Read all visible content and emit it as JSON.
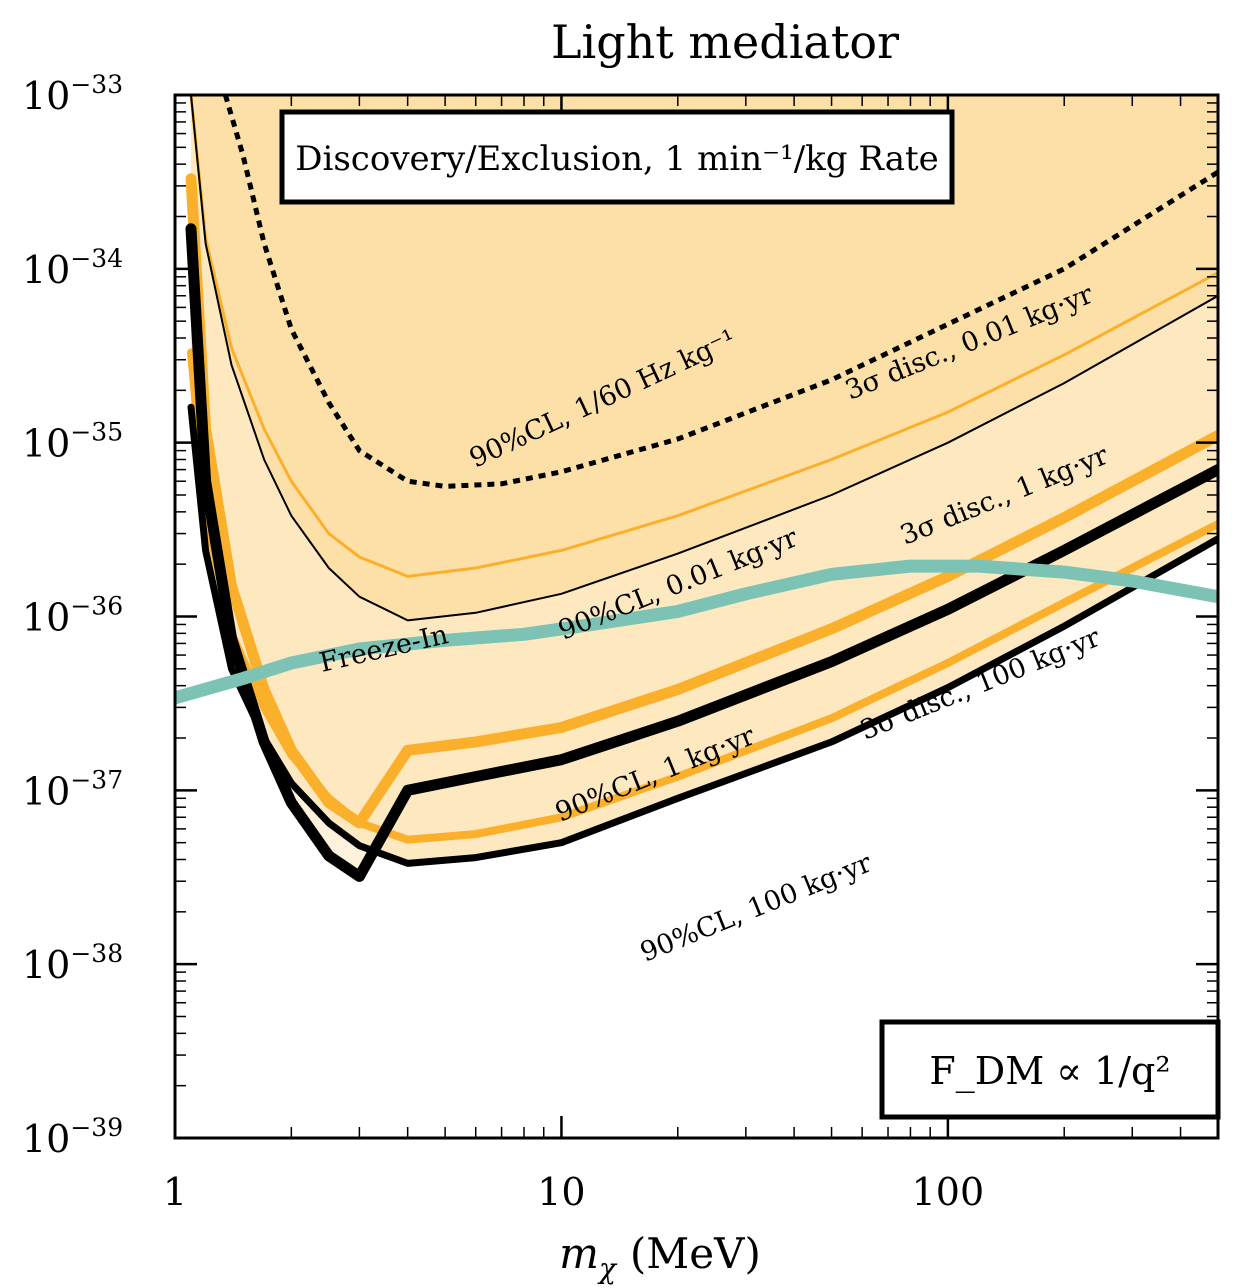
{
  "chart_data": {
    "type": "line",
    "title": "Light mediator",
    "xlabel": "m_χ (MeV)",
    "xlabel_main": "m",
    "xlabel_sub": "χ",
    "xlabel_unit": "(MeV)",
    "ylabel": "",
    "xscale": "log",
    "yscale": "log",
    "xlim": [
      1,
      500
    ],
    "ylim": [
      1e-39,
      1e-33
    ],
    "x_ticks": [
      {
        "value": 1,
        "label": "1"
      },
      {
        "value": 10,
        "label": "10"
      },
      {
        "value": 100,
        "label": "100"
      }
    ],
    "y_ticks": [
      {
        "value": 1e-33,
        "base": "10",
        "exp": "−33"
      },
      {
        "value": 1e-34,
        "base": "10",
        "exp": "−34"
      },
      {
        "value": 1e-35,
        "base": "10",
        "exp": "−35"
      },
      {
        "value": 1e-36,
        "base": "10",
        "exp": "−36"
      },
      {
        "value": 1e-37,
        "base": "10",
        "exp": "−37"
      },
      {
        "value": 1e-38,
        "base": "10",
        "exp": "−38"
      },
      {
        "value": 1e-39,
        "base": "10",
        "exp": "−39"
      }
    ],
    "legend_box": "Discovery/Exclusion, 1 min⁻¹/kg Rate",
    "form_factor_box": "F_DM ∝ 1/q²",
    "colors": {
      "band_light": "#fef2dc",
      "band_mid": "#fde8c0",
      "band_dark": "#fde0a8",
      "orange": "#fbb02c",
      "black": "#000000",
      "teal": "#7dc3b5"
    },
    "series": [
      {
        "name": "90%CL, 1/60 Hz kg⁻¹",
        "label": "90%CL, 1/60 Hz kg⁻¹",
        "style": "black-dotted",
        "x": [
          1.35,
          1.5,
          1.7,
          2.0,
          2.5,
          3.0,
          4.0,
          5.0,
          7.0,
          10,
          20,
          50,
          100,
          200,
          500
        ],
        "y": [
          1e-33,
          4.5e-34,
          1.4e-34,
          4.5e-35,
          1.7e-35,
          9e-36,
          6e-36,
          5.6e-36,
          5.8e-36,
          6.8e-36,
          1.05e-35,
          2.3e-35,
          4.8e-35,
          1e-34,
          3.6e-34
        ]
      },
      {
        "name": "3σ disc., 0.01 kg·yr",
        "label": "3σ disc., 0.01 kg·yr",
        "style": "orange-thin",
        "x": [
          1.1,
          1.2,
          1.4,
          1.7,
          2.0,
          2.5,
          3.0,
          4.0,
          6.0,
          10,
          20,
          50,
          100,
          200,
          500
        ],
        "y": [
          1e-33,
          1.5e-34,
          3.5e-35,
          1.2e-35,
          6e-36,
          3e-36,
          2.2e-36,
          1.7e-36,
          1.9e-36,
          2.4e-36,
          3.8e-36,
          8e-36,
          1.5e-35,
          3.2e-35,
          9.5e-35
        ]
      },
      {
        "name": "90%CL, 0.01 kg·yr",
        "label": "90%CL, 0.01 kg·yr",
        "style": "black-thin",
        "x": [
          1.1,
          1.2,
          1.4,
          1.7,
          2.0,
          2.5,
          3.0,
          4.0,
          6.0,
          10,
          20,
          50,
          100,
          200,
          500
        ],
        "y": [
          1e-33,
          1.4e-34,
          2.8e-35,
          8e-36,
          3.8e-36,
          1.9e-36,
          1.3e-36,
          9.5e-37,
          1.05e-36,
          1.35e-36,
          2.3e-36,
          5e-36,
          1e-35,
          2.2e-35,
          7e-35
        ]
      },
      {
        "name": "3σ disc., 1 kg·yr",
        "label": "3σ disc., 1 kg·yr",
        "style": "orange-thick",
        "x": [
          1.1,
          1.2,
          1.4,
          1.7,
          2.0,
          2.5,
          3.0,
          4.0,
          6.0,
          10,
          20,
          50,
          100,
          200,
          500
        ],
        "y": [
          3.3e-35,
          4e-36,
          8e-37,
          3e-37,
          1.6e-37,
          9e-38,
          6.5e-38,
          5.2e-38,
          5.6e-38,
          7e-38,
          1.2e-37,
          2.6e-37,
          5.4e-37,
          1.2e-36,
          3.4e-36
        ]
      },
      {
        "name": "90%CL, 1 kg·yr",
        "label": "90%CL, 1 kg·yr",
        "style": "black-thick",
        "x": [
          1.1,
          1.2,
          1.4,
          1.7,
          2.0,
          2.5,
          3.0,
          4.0,
          6.0,
          10,
          20,
          50,
          100,
          200,
          500
        ],
        "y": [
          1.6e-35,
          2.4e-36,
          5e-37,
          2e-37,
          1.1e-37,
          6.5e-38,
          4.8e-38,
          3.8e-38,
          4.1e-38,
          5e-38,
          9e-38,
          1.9e-37,
          3.9e-37,
          8.8e-37,
          2.8e-36
        ]
      },
      {
        "name": "3σ disc., 100 kg·yr",
        "label": "3σ disc., 100 kg·yr",
        "style": "orange-thicker",
        "x": [
          1.1,
          1.2,
          1.4,
          1.7,
          2.0,
          2.5,
          3.0,
          4.0,
          6.0,
          10,
          20,
          50,
          100,
          200,
          500
        ],
        "y": [
          3.3e-34,
          1.2e-35,
          1.5e-36,
          3.8e-37,
          1.7e-37,
          8.5e-38,
          6.5e-38,
          1.7e-37,
          1.9e-37,
          2.3e-37,
          3.8e-37,
          8.5e-37,
          1.7e-36,
          3.7e-36,
          1.1e-35
        ]
      },
      {
        "name": "90%CL, 100 kg·yr",
        "label": "90%CL, 100 kg·yr",
        "style": "black-thicker",
        "x": [
          1.1,
          1.2,
          1.4,
          1.7,
          2.0,
          2.5,
          3.0,
          4.0,
          6.0,
          10,
          20,
          50,
          100,
          200,
          500
        ],
        "y": [
          1.7e-34,
          6e-36,
          7.5e-37,
          1.9e-37,
          8.5e-38,
          4.2e-38,
          3.2e-38,
          1e-37,
          1.2e-37,
          1.5e-37,
          2.5e-37,
          5.5e-37,
          1.1e-36,
          2.4e-36,
          7e-36
        ]
      },
      {
        "name": "Freeze-In",
        "label": "Freeze-In",
        "style": "teal-thick",
        "x": [
          1,
          1.5,
          2,
          3,
          5,
          8,
          12,
          20,
          30,
          50,
          80,
          120,
          200,
          300,
          500
        ],
        "y": [
          3.4e-37,
          4.4e-37,
          5.4e-37,
          6.5e-37,
          7.3e-37,
          7.9e-37,
          9e-37,
          1.07e-36,
          1.35e-36,
          1.75e-36,
          1.95e-36,
          1.95e-36,
          1.8e-36,
          1.6e-36,
          1.3e-36
        ]
      }
    ]
  }
}
